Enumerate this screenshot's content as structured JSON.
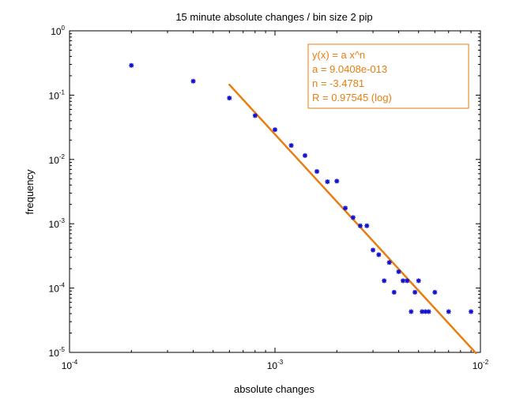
{
  "chart_data": {
    "type": "scatter",
    "title": "15 minute absolute changes / bin size 2 pip",
    "xlabel": "absolute changes",
    "ylabel": "frequency",
    "xscale": "log",
    "yscale": "log",
    "xlim": [
      0.0001,
      0.01
    ],
    "ylim": [
      1e-05,
      1
    ],
    "grid": false,
    "x_ticks": [
      {
        "base": "10",
        "exp": "-4"
      },
      {
        "base": "10",
        "exp": "-3"
      },
      {
        "base": "10",
        "exp": "-2"
      }
    ],
    "y_ticks": [
      {
        "base": "10",
        "exp": "0"
      },
      {
        "base": "10",
        "exp": "-1"
      },
      {
        "base": "10",
        "exp": "-2"
      },
      {
        "base": "10",
        "exp": "-3"
      },
      {
        "base": "10",
        "exp": "-4"
      },
      {
        "base": "10",
        "exp": "-5"
      }
    ],
    "points": {
      "color": "#1010d0",
      "x": [
        0.0002,
        0.0004,
        0.0006,
        0.0008,
        0.001,
        0.0012,
        0.0014,
        0.0016,
        0.0018,
        0.002,
        0.0022,
        0.0024,
        0.0026,
        0.0028,
        0.003,
        0.0032,
        0.0034,
        0.0036,
        0.0038,
        0.004,
        0.0042,
        0.0044,
        0.0046,
        0.0048,
        0.005,
        0.0052,
        0.0054,
        0.0056,
        0.006,
        0.007,
        0.009
      ],
      "y": [
        0.29,
        0.165,
        0.09,
        0.048,
        0.029,
        0.0165,
        0.0115,
        0.0065,
        0.0045,
        0.0046,
        0.00175,
        0.00125,
        0.00093,
        0.00093,
        0.00039,
        0.00033,
        0.00013,
        0.00025,
        8.6e-05,
        0.00018,
        0.00013,
        0.00013,
        4.3e-05,
        8.6e-05,
        0.00013,
        4.3e-05,
        4.3e-05,
        4.3e-05,
        8.6e-05,
        4.3e-05,
        4.3e-05
      ]
    },
    "fit": {
      "color": "#e87e10",
      "x_range": [
        0.0006,
        0.0095
      ],
      "a": 9.0408e-13,
      "n": -3.4781
    },
    "legend": {
      "position": "top-right",
      "color": "#e87e10",
      "lines": [
        "y(x) = a x^n",
        "a = 9.0408e-013",
        "n = -3.4781",
        "R = 0.97545  (log)"
      ]
    }
  }
}
